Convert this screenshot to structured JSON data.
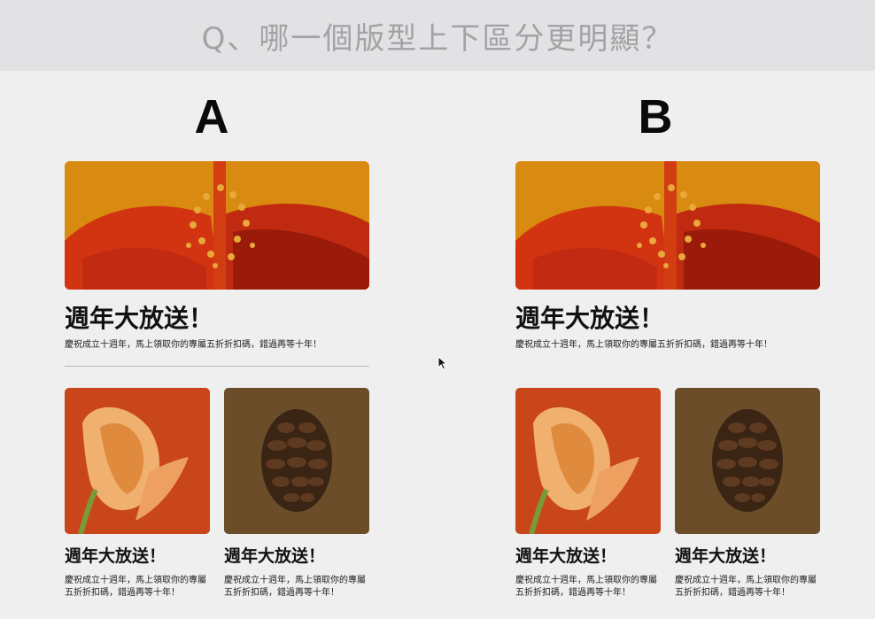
{
  "header": {
    "question": "Q、哪一個版型上下區分更明顯？"
  },
  "panels": [
    {
      "label": "A",
      "has_divider": true,
      "hero": {
        "title": "週年大放送！",
        "desc": "慶祝成立十週年，馬上領取你的專屬五折折扣碼，錯過再等十年！"
      },
      "cards": [
        {
          "title": "週年大放送！",
          "desc": "慶祝成立十週年，馬上領取你的專屬五折折扣碼，錯過再等十年！"
        },
        {
          "title": "週年大放送！",
          "desc": "慶祝成立十週年，馬上領取你的專屬五折折扣碼，錯過再等十年！"
        }
      ]
    },
    {
      "label": "B",
      "has_divider": false,
      "hero": {
        "title": "週年大放送！",
        "desc": "慶祝成立十週年，馬上領取你的專屬五折折扣碼，錯過再等十年！"
      },
      "cards": [
        {
          "title": "週年大放送！",
          "desc": "慶祝成立十週年，馬上領取你的專屬五折折扣碼，錯過再等十年！"
        },
        {
          "title": "週年大放送！",
          "desc": "慶祝成立十週年，馬上領取你的專屬五折折扣碼，錯過再等十年！"
        }
      ]
    }
  ],
  "images": {
    "hero": "hibiscus-flower-photo",
    "card1": "calla-lily-photo",
    "card2": "pine-cone-photo"
  },
  "colors": {
    "header_bg": "#e2e1e3",
    "page_bg": "#efeff0",
    "hero_bg": "#d98a10",
    "lily_bg": "#c9461a",
    "pinecone_bg": "#6b4d2a"
  }
}
